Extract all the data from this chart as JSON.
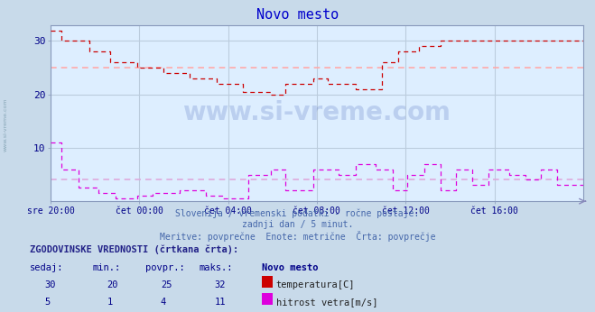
{
  "title": "Novo mesto",
  "subtitle1": "Slovenija / vremenski podatki - ročne postaje.",
  "subtitle2": "zadnji dan / 5 minut.",
  "subtitle3": "Meritve: povprečne  Enote: metrične  Črta: povprečje",
  "watermark": "www.si-vreme.com",
  "xlabel_ticks": [
    "sre 20:00",
    "čet 00:00",
    "čet 04:00",
    "čet 08:00",
    "čet 12:00",
    "čet 16:00"
  ],
  "ylim": [
    0,
    33
  ],
  "yticks": [
    10,
    20,
    30
  ],
  "temp_avg": 25,
  "wind_avg": 4,
  "temp_color": "#cc0000",
  "wind_color": "#dd00dd",
  "avg_color_temp": "#ffaaaa",
  "avg_color_wind": "#ddaadd",
  "bg_color": "#c8daea",
  "plot_bg": "#ddeeff",
  "grid_color": "#bbccdd",
  "title_color": "#0000cc",
  "text_color": "#000088",
  "label_color": "#4466aa",
  "legend_temp_color": "#cc0000",
  "legend_wind_color": "#dd00dd",
  "hist_label": "ZGODOVINSKE VREDNOSTI (črtkana črta):",
  "col_headers": [
    "sedaj:",
    "min.:",
    "povpr.:",
    "maks.:",
    "Novo mesto"
  ],
  "row1": [
    "30",
    "20",
    "25",
    "32"
  ],
  "row1_label": "temperatura[C]",
  "row2": [
    "5",
    "1",
    "4",
    "11"
  ],
  "row2_label": "hitrost vetra[m/s]",
  "n_points": 289
}
